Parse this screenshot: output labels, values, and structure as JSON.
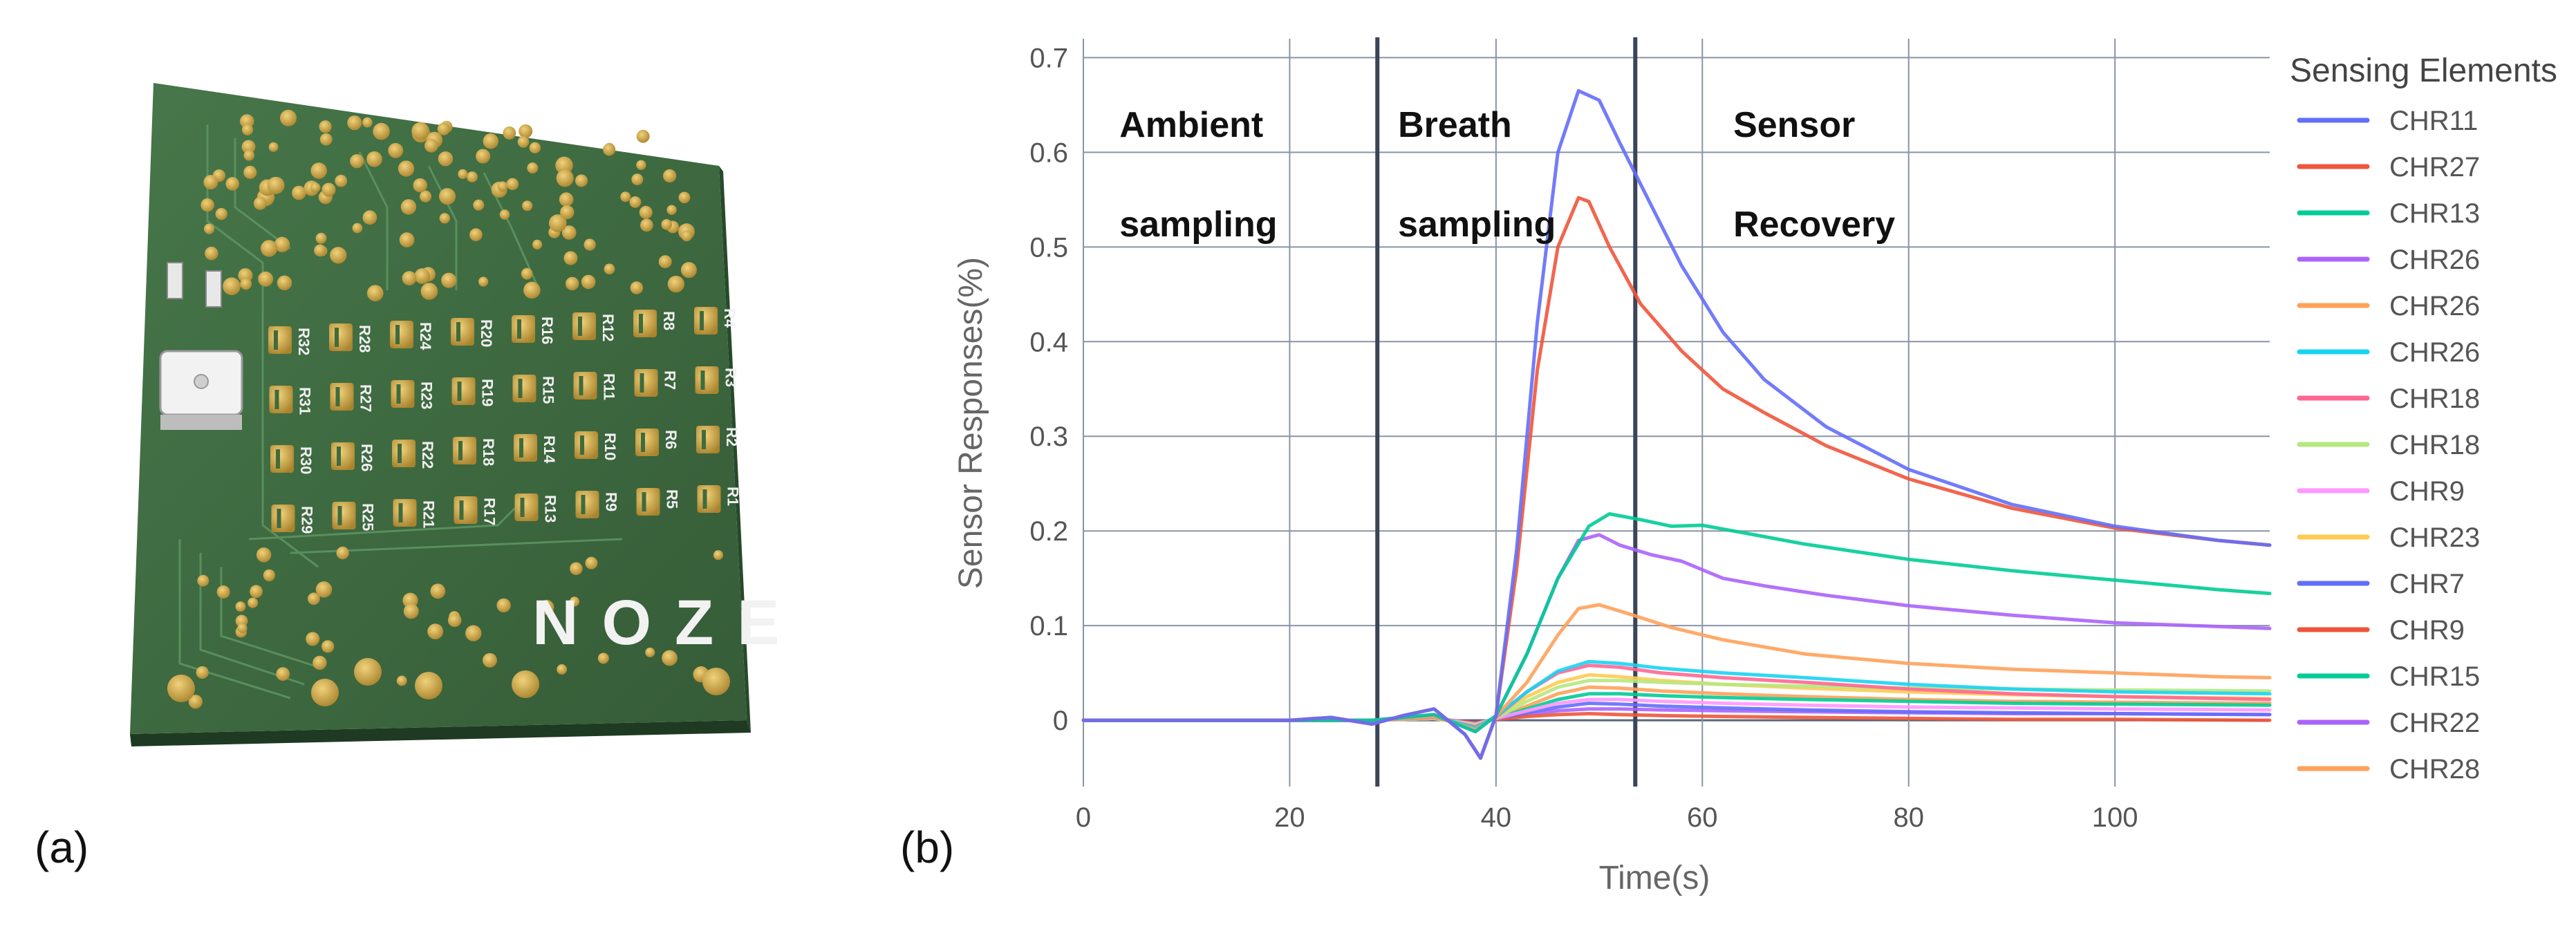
{
  "panel_a": {
    "label": "(a)",
    "board": {
      "logo_text": "NOZE",
      "resistor_labels": [
        "R32",
        "R31",
        "R30",
        "R29",
        "R28",
        "R27",
        "R26",
        "R25",
        "R24",
        "R23",
        "R22",
        "R21",
        "R20",
        "R19",
        "R18",
        "R17",
        "R16",
        "R15",
        "R14",
        "R13",
        "R12",
        "R11",
        "R10",
        "R9",
        "R8",
        "R7",
        "R6",
        "R5",
        "R4",
        "R3",
        "R2",
        "R1"
      ],
      "colors": {
        "board": "#3f6b3f",
        "pad": "#c9a546",
        "label": "#f0f0f0"
      }
    }
  },
  "panel_b": {
    "label": "(b)"
  },
  "chart_data": {
    "type": "line",
    "title": "",
    "xlabel": "Time(s)",
    "ylabel": "Sensor Responses(%)",
    "xlim": [
      0,
      115
    ],
    "ylim": [
      -0.07,
      0.72
    ],
    "xticks": [
      0,
      20,
      40,
      60,
      80,
      100
    ],
    "xtick_labels": [
      "0",
      "20",
      "40",
      "60",
      "80",
      "100"
    ],
    "yticks": [
      0,
      0.1,
      0.2,
      0.3,
      0.4,
      0.5,
      0.6,
      0.7
    ],
    "ytick_labels": [
      "0",
      "0.1",
      "0.2",
      "0.3",
      "0.4",
      "0.5",
      "0.6",
      "0.7"
    ],
    "grid": true,
    "phase_boundaries": [
      28.5,
      53.5
    ],
    "phase_labels": [
      {
        "x": 3.5,
        "lines": [
          "Ambient",
          "sampling"
        ]
      },
      {
        "x": 30.5,
        "lines": [
          "Breath",
          "sampling"
        ]
      },
      {
        "x": 63,
        "lines": [
          "Sensor",
          "Recovery"
        ]
      }
    ],
    "legend": {
      "title": "Sensing Elements",
      "position": "right"
    },
    "series": [
      {
        "name": "CHR11",
        "color": "#636efa",
        "x": [
          0,
          20,
          24,
          28,
          31,
          34,
          37,
          38.5,
          40,
          42,
          44,
          46,
          48,
          50,
          52,
          55,
          58,
          62,
          66,
          72,
          80,
          90,
          100,
          110,
          115
        ],
        "y": [
          0,
          0,
          0.003,
          -0.004,
          0.005,
          0.012,
          -0.015,
          -0.04,
          0.005,
          0.18,
          0.42,
          0.6,
          0.665,
          0.655,
          0.61,
          0.545,
          0.48,
          0.41,
          0.36,
          0.31,
          0.265,
          0.228,
          0.205,
          0.19,
          0.185
        ]
      },
      {
        "name": "CHR27",
        "color": "#ef553b",
        "x": [
          0,
          20,
          24,
          28,
          31,
          34,
          37,
          38.5,
          40,
          42,
          44,
          46,
          48,
          49,
          51,
          54,
          58,
          62,
          66,
          72,
          80,
          90,
          100,
          110,
          115
        ],
        "y": [
          0,
          0,
          0.003,
          -0.004,
          0.005,
          0.012,
          -0.015,
          -0.04,
          0.005,
          0.16,
          0.37,
          0.5,
          0.552,
          0.548,
          0.5,
          0.44,
          0.39,
          0.35,
          0.325,
          0.29,
          0.255,
          0.224,
          0.203,
          0.19,
          0.185
        ]
      },
      {
        "name": "CHR13",
        "color": "#00cc96",
        "x": [
          0,
          28,
          34,
          38,
          40,
          43,
          46,
          49,
          51,
          54,
          57,
          60,
          64,
          70,
          80,
          90,
          100,
          110,
          115
        ],
        "y": [
          0,
          0,
          0.006,
          -0.012,
          0.005,
          0.07,
          0.15,
          0.205,
          0.218,
          0.212,
          0.205,
          0.206,
          0.198,
          0.186,
          0.17,
          0.158,
          0.148,
          0.138,
          0.134
        ]
      },
      {
        "name": "CHR26",
        "color": "#ab63fa",
        "x": [
          0,
          28,
          34,
          38,
          40,
          43,
          46,
          48,
          50,
          52,
          55,
          58,
          62,
          66,
          72,
          80,
          90,
          100,
          110,
          115
        ],
        "y": [
          0,
          0,
          0.006,
          -0.012,
          0.005,
          0.07,
          0.15,
          0.19,
          0.196,
          0.185,
          0.175,
          0.168,
          0.15,
          0.142,
          0.132,
          0.121,
          0.111,
          0.103,
          0.099,
          0.097
        ]
      },
      {
        "name": "CHR26",
        "color": "#ffa15a",
        "x": [
          0,
          28,
          34,
          38,
          40,
          43,
          46,
          48,
          50,
          53,
          57,
          62,
          70,
          80,
          90,
          100,
          110,
          115
        ],
        "y": [
          0,
          0,
          0.004,
          -0.01,
          0.004,
          0.04,
          0.09,
          0.118,
          0.122,
          0.112,
          0.098,
          0.085,
          0.07,
          0.06,
          0.054,
          0.05,
          0.046,
          0.045
        ]
      },
      {
        "name": "CHR26",
        "color": "#19d3f3",
        "x": [
          0,
          28,
          34,
          38,
          40,
          43,
          46,
          49,
          52,
          56,
          62,
          70,
          80,
          90,
          100,
          115
        ],
        "y": [
          0,
          0,
          0.004,
          -0.008,
          0.004,
          0.03,
          0.052,
          0.062,
          0.06,
          0.055,
          0.05,
          0.045,
          0.038,
          0.033,
          0.03,
          0.028
        ]
      },
      {
        "name": "CHR18",
        "color": "#ff6692",
        "x": [
          0,
          28,
          34,
          38,
          40,
          43,
          46,
          49,
          52,
          56,
          62,
          70,
          80,
          90,
          100,
          115
        ],
        "y": [
          0,
          0,
          0.003,
          -0.007,
          0.003,
          0.03,
          0.05,
          0.058,
          0.056,
          0.05,
          0.045,
          0.04,
          0.033,
          0.028,
          0.025,
          0.022
        ]
      },
      {
        "name": "CHR18",
        "color": "#b6e880",
        "x": [
          0,
          28,
          34,
          38,
          40,
          43,
          46,
          49,
          52,
          56,
          62,
          70,
          80,
          90,
          100,
          115
        ],
        "y": [
          0,
          0,
          0.002,
          -0.005,
          0.002,
          0.02,
          0.035,
          0.042,
          0.042,
          0.04,
          0.038,
          0.036,
          0.034,
          0.033,
          0.032,
          0.031
        ]
      },
      {
        "name": "CHR9",
        "color": "#ff97ff",
        "x": [
          0,
          28,
          34,
          38,
          40,
          43,
          46,
          49,
          52,
          56,
          62,
          70,
          80,
          90,
          100,
          115
        ],
        "y": [
          0,
          0,
          0.002,
          -0.004,
          0.002,
          0.01,
          0.018,
          0.022,
          0.022,
          0.02,
          0.018,
          0.016,
          0.014,
          0.013,
          0.012,
          0.011
        ]
      },
      {
        "name": "CHR23",
        "color": "#fecb52",
        "x": [
          0,
          28,
          34,
          38,
          40,
          43,
          46,
          49,
          52,
          56,
          62,
          70,
          80,
          90,
          100,
          115
        ],
        "y": [
          0,
          0,
          0.002,
          -0.005,
          0.002,
          0.025,
          0.04,
          0.048,
          0.046,
          0.042,
          0.038,
          0.034,
          0.03,
          0.027,
          0.025,
          0.023
        ]
      },
      {
        "name": "CHR7",
        "color": "#636efa",
        "x": [
          0,
          28,
          34,
          38,
          40,
          43,
          46,
          49,
          52,
          56,
          62,
          70,
          80,
          90,
          100,
          115
        ],
        "y": [
          0,
          0,
          0.002,
          -0.004,
          0.002,
          0.008,
          0.014,
          0.018,
          0.017,
          0.015,
          0.013,
          0.011,
          0.009,
          0.008,
          0.007,
          0.006
        ]
      },
      {
        "name": "CHR9",
        "color": "#ef553b",
        "x": [
          0,
          28,
          34,
          38,
          40,
          43,
          46,
          49,
          52,
          56,
          62,
          70,
          80,
          90,
          100,
          115
        ],
        "y": [
          0,
          0,
          0.002,
          -0.003,
          0.001,
          0.004,
          0.006,
          0.007,
          0.006,
          0.005,
          0.004,
          0.003,
          0.002,
          0.001,
          0.001,
          0.0
        ]
      },
      {
        "name": "CHR15",
        "color": "#00cc96",
        "x": [
          0,
          28,
          34,
          38,
          40,
          43,
          46,
          49,
          52,
          56,
          62,
          70,
          80,
          90,
          100,
          115
        ],
        "y": [
          0,
          0,
          0.002,
          -0.004,
          0.002,
          0.012,
          0.022,
          0.028,
          0.028,
          0.026,
          0.024,
          0.022,
          0.02,
          0.018,
          0.017,
          0.016
        ]
      },
      {
        "name": "CHR22",
        "color": "#ab63fa",
        "x": [
          0,
          28,
          34,
          38,
          40,
          43,
          46,
          49,
          52,
          56,
          62,
          70,
          80,
          90,
          100,
          115
        ],
        "y": [
          0,
          0,
          0.002,
          -0.003,
          0.001,
          0.006,
          0.01,
          0.012,
          0.012,
          0.011,
          0.01,
          0.009,
          0.008,
          0.007,
          0.007,
          0.006
        ]
      },
      {
        "name": "CHR28",
        "color": "#ffa15a",
        "x": [
          0,
          28,
          34,
          38,
          40,
          43,
          46,
          49,
          52,
          56,
          62,
          70,
          80,
          90,
          100,
          115
        ],
        "y": [
          0,
          0,
          0.002,
          -0.004,
          0.002,
          0.015,
          0.028,
          0.035,
          0.034,
          0.031,
          0.028,
          0.025,
          0.022,
          0.02,
          0.019,
          0.018
        ]
      }
    ]
  }
}
